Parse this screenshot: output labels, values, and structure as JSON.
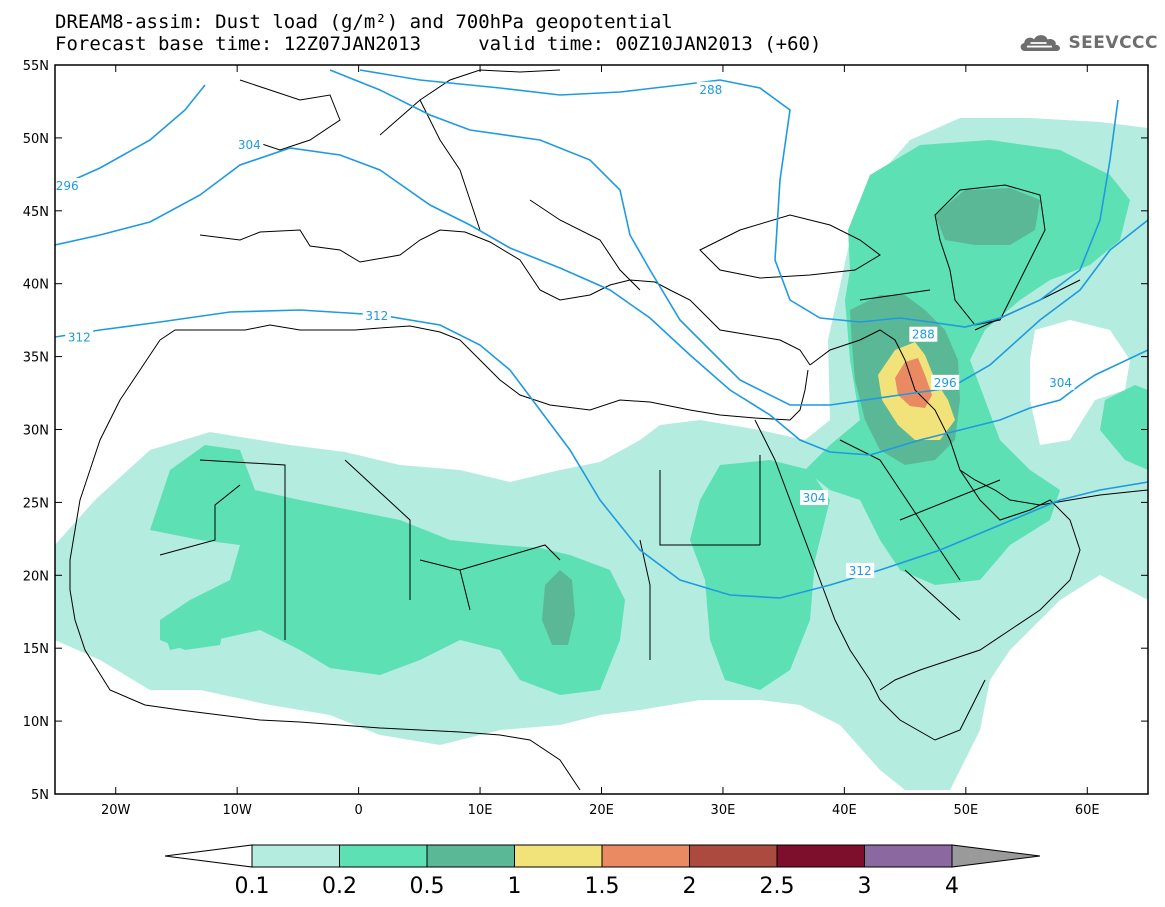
{
  "header": {
    "title_line1": "DREAM8-assim: Dust load (g/m²) and 700hPa geopotential",
    "title_line2": "Forecast base time: 12Z07JAN2013     valid time: 00Z10JAN2013 (+60)"
  },
  "logo": {
    "text": "SEEVCCC",
    "icon": "cloud-icon",
    "color": "#6e6e6e"
  },
  "map": {
    "lon_range": [
      -25,
      65
    ],
    "lat_range": [
      5,
      55
    ],
    "x_ticks": [
      {
        "value": -20,
        "label": "20W"
      },
      {
        "value": -10,
        "label": "10W"
      },
      {
        "value": 0,
        "label": "0"
      },
      {
        "value": 10,
        "label": "10E"
      },
      {
        "value": 20,
        "label": "20E"
      },
      {
        "value": 30,
        "label": "30E"
      },
      {
        "value": 40,
        "label": "40E"
      },
      {
        "value": 50,
        "label": "50E"
      },
      {
        "value": 60,
        "label": "60E"
      }
    ],
    "y_ticks": [
      {
        "value": 55,
        "label": "55N"
      },
      {
        "value": 50,
        "label": "50N"
      },
      {
        "value": 45,
        "label": "45N"
      },
      {
        "value": 40,
        "label": "40N"
      },
      {
        "value": 35,
        "label": "35N"
      },
      {
        "value": 30,
        "label": "30N"
      },
      {
        "value": 25,
        "label": "25N"
      },
      {
        "value": 20,
        "label": "20N"
      },
      {
        "value": 15,
        "label": "15N"
      },
      {
        "value": 10,
        "label": "10N"
      },
      {
        "value": 5,
        "label": "5N"
      }
    ],
    "contour_color": "#1f9ae0",
    "contour_labels": [
      {
        "text": "288",
        "lon": 29,
        "lat": 53.3
      },
      {
        "text": "288",
        "lon": 46.5,
        "lat": 36.5
      },
      {
        "text": "296",
        "lon": -24,
        "lat": 46.7
      },
      {
        "text": "296",
        "lon": 48.3,
        "lat": 33.2
      },
      {
        "text": "304",
        "lon": -9,
        "lat": 49.5
      },
      {
        "text": "304",
        "lon": 37.5,
        "lat": 25.3
      },
      {
        "text": "304",
        "lon": 57.8,
        "lat": 33.2
      },
      {
        "text": "312",
        "lon": -23,
        "lat": 36.3
      },
      {
        "text": "312",
        "lon": 1.5,
        "lat": 37.8
      },
      {
        "text": "312",
        "lon": 41.3,
        "lat": 20.3
      }
    ]
  },
  "colorbar": {
    "labels": [
      "0.1",
      "0.2",
      "0.5",
      "1",
      "1.5",
      "2",
      "2.5",
      "3",
      "4"
    ],
    "colors": [
      "#b5ece0",
      "#5de0b4",
      "#5bb896",
      "#f2e27a",
      "#e98a63",
      "#ac4a3f",
      "#7d0f2c",
      "#8c68a0"
    ],
    "left_end_color": "#ffffff",
    "right_end_color": "#9a9a9a"
  }
}
